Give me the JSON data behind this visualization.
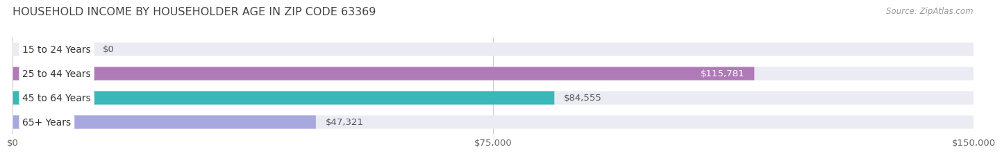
{
  "title": "HOUSEHOLD INCOME BY HOUSEHOLDER AGE IN ZIP CODE 63369",
  "source": "Source: ZipAtlas.com",
  "categories": [
    "15 to 24 Years",
    "25 to 44 Years",
    "45 to 64 Years",
    "65+ Years"
  ],
  "values": [
    0,
    115781,
    84555,
    47321
  ],
  "bar_colors": [
    "#aabce8",
    "#b07ab8",
    "#38b8b8",
    "#a8a8e0"
  ],
  "bar_bg_color": "#ebebf3",
  "xlim": [
    0,
    150000
  ],
  "xticks": [
    0,
    75000,
    150000
  ],
  "xtick_labels": [
    "$0",
    "$75,000",
    "$150,000"
  ],
  "value_labels": [
    "$0",
    "$115,781",
    "$84,555",
    "$47,321"
  ],
  "title_fontsize": 11.5,
  "source_fontsize": 8.5,
  "tick_fontsize": 9.5,
  "bar_label_fontsize": 9.5,
  "category_fontsize": 10,
  "fig_bg_color": "#ffffff",
  "bar_height": 0.55,
  "value_label_color_inside": "#ffffff",
  "value_label_color_outside": "#555555"
}
